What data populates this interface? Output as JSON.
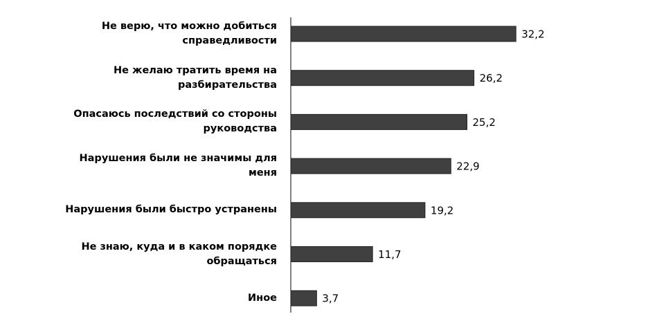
{
  "chart_data": {
    "type": "bar",
    "orientation": "horizontal",
    "categories": [
      "Не верю, что можно добиться справедливости",
      "Не желаю тратить время на разбирательства",
      "Опасаюсь последствий со стороны руководства",
      "Нарушения были не значимы для меня",
      "Нарушения были быстро устранены",
      "Не знаю, куда и в каком порядке обращаться",
      "Иное"
    ],
    "values": [
      32.2,
      26.2,
      25.2,
      22.9,
      19.2,
      11.7,
      3.7
    ],
    "value_labels": [
      "32,2",
      "26,2",
      "25,2",
      "22,9",
      "19,2",
      "11,7",
      "3,7"
    ],
    "color": "#404040"
  }
}
